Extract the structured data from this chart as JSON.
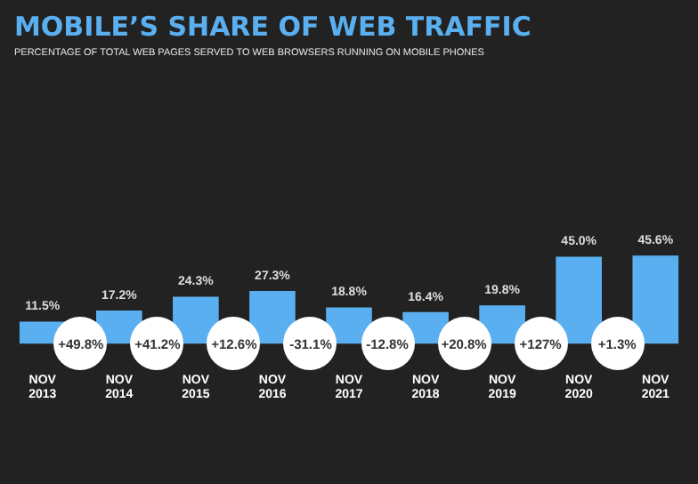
{
  "chart_data": {
    "type": "bar",
    "title": "MOBILE’S SHARE OF WEB TRAFFIC",
    "subtitle": "PERCENTAGE OF TOTAL WEB PAGES SERVED TO WEB BROWSERS RUNNING ON MOBILE PHONES",
    "categories": [
      "NOV 2013",
      "NOV 2014",
      "NOV 2015",
      "NOV 2016",
      "NOV 2017",
      "NOV 2018",
      "NOV 2019",
      "NOV 2020",
      "NOV 2021"
    ],
    "values": [
      11.5,
      17.2,
      24.3,
      27.3,
      18.8,
      16.4,
      19.8,
      45.0,
      45.6
    ],
    "value_labels": [
      "11.5%",
      "17.2%",
      "24.3%",
      "27.3%",
      "18.8%",
      "16.4%",
      "19.8%",
      "45.0%",
      "45.6%"
    ],
    "color": "#5aaff0",
    "legend": false,
    "annotations": [
      "+49.8%",
      "+41.2%",
      "+12.6%",
      "-31.1%",
      "-12.8%",
      "+20.8%",
      "+127%",
      "+1.3%"
    ]
  }
}
